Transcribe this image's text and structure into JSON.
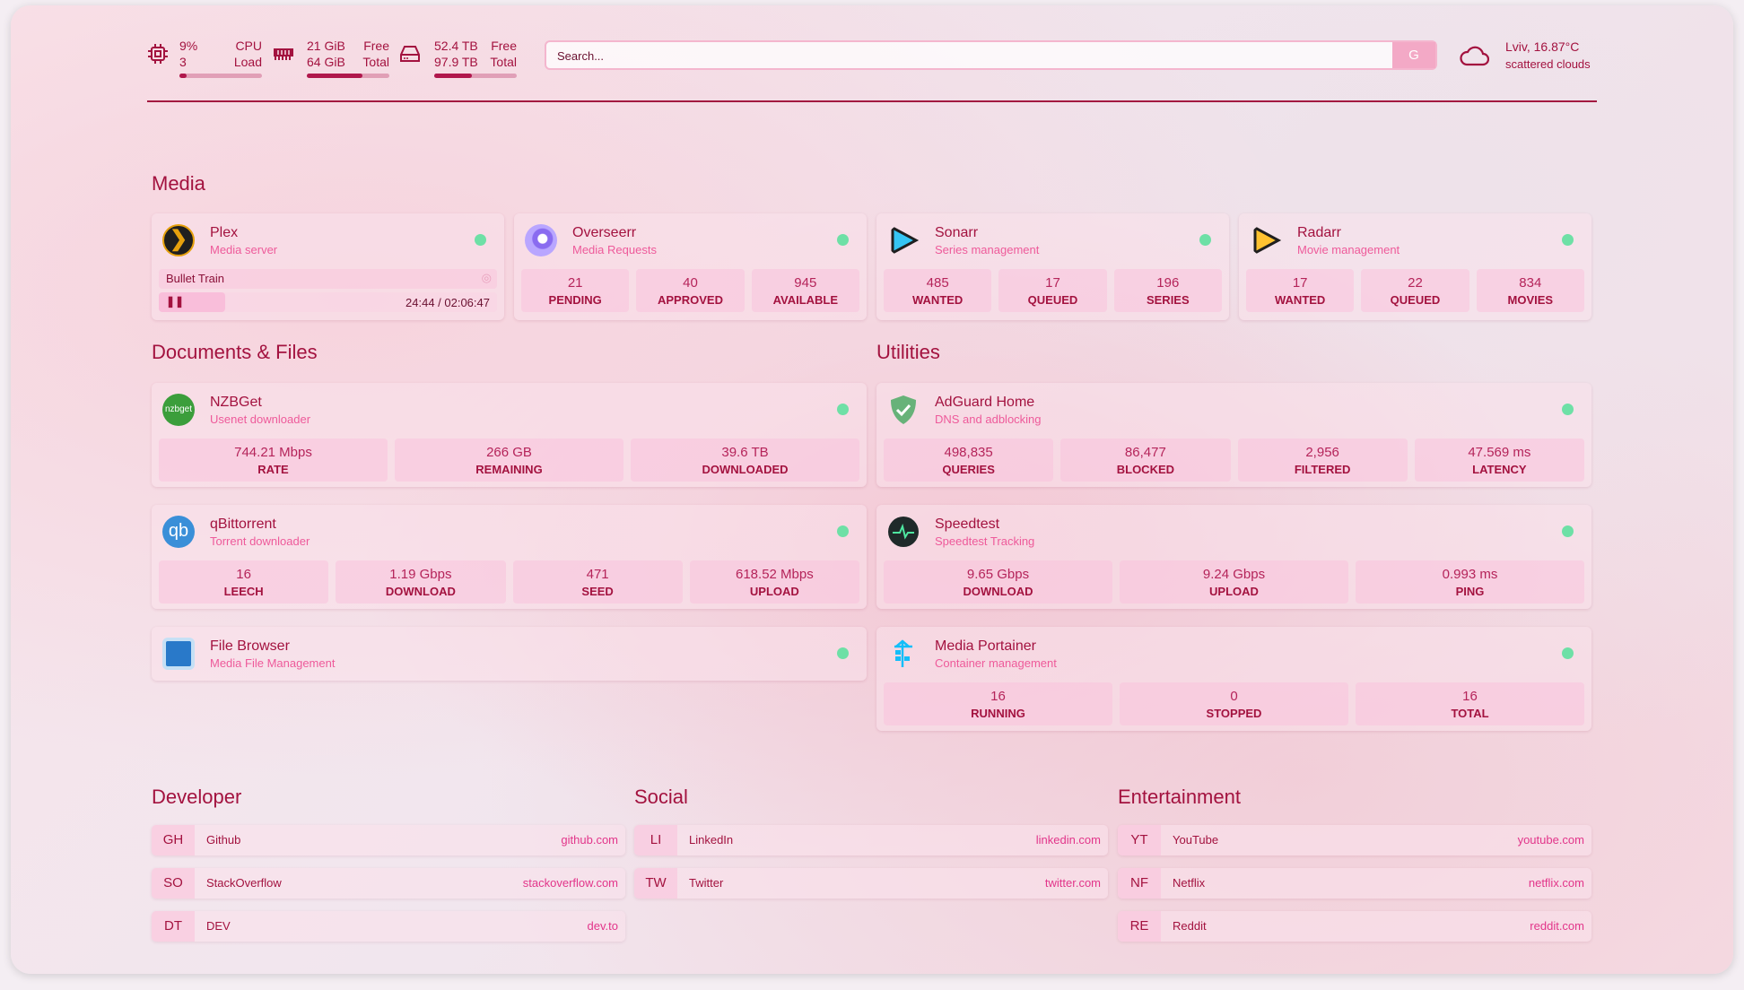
{
  "resources": {
    "cpu": {
      "icon": "cpu-icon",
      "value": "9%",
      "value2": "3",
      "label1": "CPU",
      "label2": "Load",
      "percent": 9
    },
    "memory": {
      "icon": "memory-icon",
      "value": "21 GiB",
      "value2": "64 GiB",
      "label1": "Free",
      "label2": "Total",
      "percent": 67
    },
    "disk": {
      "icon": "disk-icon",
      "value": "52.4 TB",
      "value2": "97.9 TB",
      "label1": "Free",
      "label2": "Total",
      "percent": 46
    }
  },
  "search": {
    "placeholder": "Search...",
    "provider": "G"
  },
  "weather": {
    "icon": "cloud-icon",
    "location_temp": "Lviv, 16.87°C",
    "condition": "scattered clouds"
  },
  "sections": {
    "media": "Media",
    "documents": "Documents & Files",
    "utilities": "Utilities",
    "developer": "Developer",
    "social": "Social",
    "entertainment": "Entertainment"
  },
  "media": [
    {
      "name": "Plex",
      "desc": "Media server",
      "now_playing": "Bullet Train",
      "time": "24:44 / 02:06:47",
      "progress": 19.5
    },
    {
      "name": "Overseerr",
      "desc": "Media Requests",
      "stats": [
        {
          "v": "21",
          "l": "PENDING"
        },
        {
          "v": "40",
          "l": "APPROVED"
        },
        {
          "v": "945",
          "l": "AVAILABLE"
        }
      ]
    },
    {
      "name": "Sonarr",
      "desc": "Series management",
      "stats": [
        {
          "v": "485",
          "l": "WANTED"
        },
        {
          "v": "17",
          "l": "QUEUED"
        },
        {
          "v": "196",
          "l": "SERIES"
        }
      ]
    },
    {
      "name": "Radarr",
      "desc": "Movie management",
      "stats": [
        {
          "v": "17",
          "l": "WANTED"
        },
        {
          "v": "22",
          "l": "QUEUED"
        },
        {
          "v": "834",
          "l": "MOVIES"
        }
      ]
    }
  ],
  "documents": [
    {
      "name": "NZBGet",
      "desc": "Usenet downloader",
      "icon_text": "nzbget",
      "stats": [
        {
          "v": "744.21 Mbps",
          "l": "RATE"
        },
        {
          "v": "266 GB",
          "l": "REMAINING"
        },
        {
          "v": "39.6 TB",
          "l": "DOWNLOADED"
        }
      ]
    },
    {
      "name": "qBittorrent",
      "desc": "Torrent downloader",
      "icon_text": "qb",
      "stats": [
        {
          "v": "16",
          "l": "LEECH"
        },
        {
          "v": "1.19 Gbps",
          "l": "DOWNLOAD"
        },
        {
          "v": "471",
          "l": "SEED"
        },
        {
          "v": "618.52 Mbps",
          "l": "UPLOAD"
        }
      ]
    },
    {
      "name": "File Browser",
      "desc": "Media File Management"
    }
  ],
  "utilities": [
    {
      "name": "AdGuard Home",
      "desc": "DNS and adblocking",
      "stats": [
        {
          "v": "498,835",
          "l": "QUERIES"
        },
        {
          "v": "86,477",
          "l": "BLOCKED"
        },
        {
          "v": "2,956",
          "l": "FILTERED"
        },
        {
          "v": "47.569 ms",
          "l": "LATENCY"
        }
      ]
    },
    {
      "name": "Speedtest",
      "desc": "Speedtest Tracking",
      "stats": [
        {
          "v": "9.65 Gbps",
          "l": "DOWNLOAD"
        },
        {
          "v": "9.24 Gbps",
          "l": "UPLOAD"
        },
        {
          "v": "0.993 ms",
          "l": "PING"
        }
      ]
    },
    {
      "name": "Media Portainer",
      "desc": "Container management",
      "stats": [
        {
          "v": "16",
          "l": "RUNNING"
        },
        {
          "v": "0",
          "l": "STOPPED"
        },
        {
          "v": "16",
          "l": "TOTAL"
        }
      ]
    }
  ],
  "bookmarks": {
    "developer": [
      {
        "abbr": "GH",
        "name": "Github",
        "href": "github.com"
      },
      {
        "abbr": "SO",
        "name": "StackOverflow",
        "href": "stackoverflow.com"
      },
      {
        "abbr": "DT",
        "name": "DEV",
        "href": "dev.to"
      }
    ],
    "social": [
      {
        "abbr": "LI",
        "name": "LinkedIn",
        "href": "linkedin.com"
      },
      {
        "abbr": "TW",
        "name": "Twitter",
        "href": "twitter.com"
      }
    ],
    "entertainment": [
      {
        "abbr": "YT",
        "name": "YouTube",
        "href": "youtube.com"
      },
      {
        "abbr": "NF",
        "name": "Netflix",
        "href": "netflix.com"
      },
      {
        "abbr": "RE",
        "name": "Reddit",
        "href": "reddit.com"
      }
    ]
  },
  "colors": {
    "accent": "#a3123f",
    "status_online": "#6ee0a6",
    "block": "#fac3dc"
  }
}
